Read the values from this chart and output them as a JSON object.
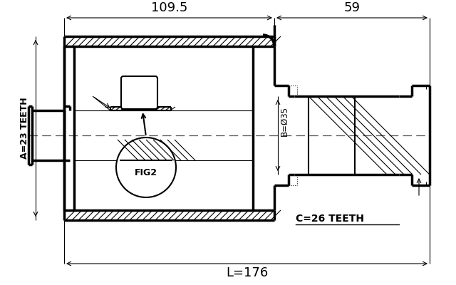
{
  "bg_color": "#ffffff",
  "line_color": "#000000",
  "dim_109_5": "109.5",
  "dim_59": "59",
  "dim_176": "L=176",
  "label_A": "A=23 TEETH",
  "label_B": "B=Ø35",
  "label_C": "C=26 TEETH",
  "label_fig": "FIG2",
  "figsize": [
    6.4,
    4.0
  ],
  "dpi": 100
}
